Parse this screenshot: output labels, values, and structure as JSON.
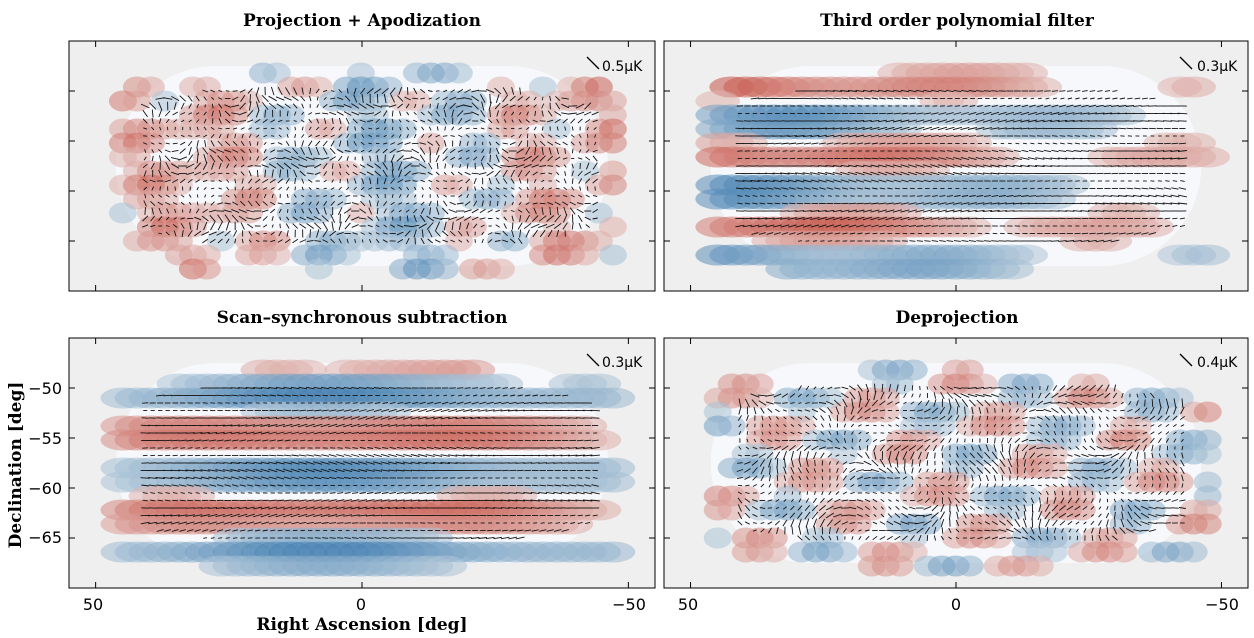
{
  "chart_data": {
    "type": "vector-field-map",
    "xlabel": "Right Ascension [deg]",
    "ylabel": "Declination [deg]",
    "xlim": [
      55,
      -55
    ],
    "ylim": [
      -70,
      -45
    ],
    "xticks": [
      50,
      0,
      -50
    ],
    "xtick_labels": [
      "50",
      "0",
      "−50"
    ],
    "yticks": [
      -50,
      -55,
      -60,
      -65
    ],
    "ytick_labels": [
      "−50",
      "−55",
      "−60",
      "−65"
    ],
    "colors": {
      "background": "#efefef",
      "positive": "#c0392b",
      "negative": "#2a6fa8",
      "vector": "#111111"
    },
    "panels": [
      {
        "id": "proj",
        "title": "Projection + Apodization",
        "scale_label": "0.5μK",
        "scale_value_uK": 0.5,
        "pattern": "noisy"
      },
      {
        "id": "poly",
        "title": "Third order polynomial filter",
        "scale_label": "0.3μK",
        "scale_value_uK": 0.3,
        "pattern": "stripes"
      },
      {
        "id": "scan",
        "title": "Scan–synchronous subtraction",
        "scale_label": "0.3μK",
        "scale_value_uK": 0.3,
        "pattern": "stripes2"
      },
      {
        "id": "deproj",
        "title": "Deprojection",
        "scale_label": "0.4μK",
        "scale_value_uK": 0.4,
        "pattern": "swirl"
      }
    ]
  }
}
